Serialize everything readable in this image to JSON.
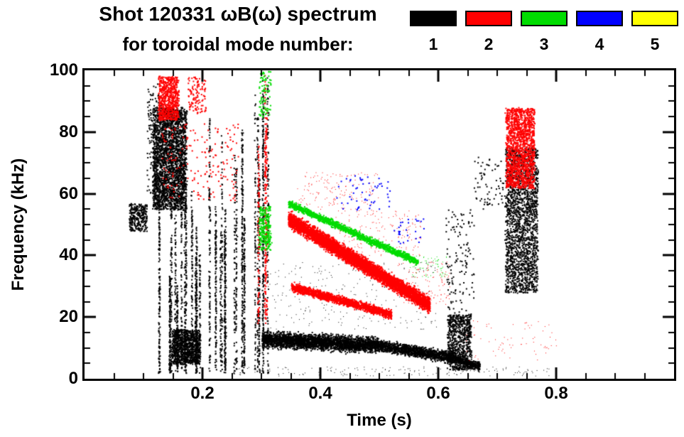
{
  "chart_data": {
    "type": "scatter",
    "title": "Shot 120331 ωB(ω) spectrum",
    "subtitle": "for toroidal mode number:",
    "xlabel": "Time (s)",
    "ylabel": "Frequency (kHz)",
    "xlim": [
      0.0,
      1.0
    ],
    "ylim": [
      0,
      100
    ],
    "grid": false,
    "xticks": [
      {
        "value": 0.2,
        "label": "0.2"
      },
      {
        "value": 0.4,
        "label": "0.4"
      },
      {
        "value": 0.6,
        "label": "0.6"
      },
      {
        "value": 0.8,
        "label": "0.8"
      }
    ],
    "xticks_minor_step": 0.05,
    "yticks": [
      {
        "value": 0,
        "label": "0"
      },
      {
        "value": 20,
        "label": "20"
      },
      {
        "value": 40,
        "label": "40"
      },
      {
        "value": 60,
        "label": "60"
      },
      {
        "value": 80,
        "label": "80"
      },
      {
        "value": 100,
        "label": "100"
      }
    ],
    "yticks_minor_step": 5,
    "legend": {
      "position": "top-right",
      "items": [
        {
          "mode": 1,
          "label": "1",
          "color": "#000000"
        },
        {
          "mode": 2,
          "label": "2",
          "color": "#ff0000"
        },
        {
          "mode": 3,
          "label": "3",
          "color": "#00dc00"
        },
        {
          "mode": 4,
          "label": "4",
          "color": "#0000ff"
        },
        {
          "mode": 5,
          "label": "5",
          "color": "#ffff00"
        }
      ]
    },
    "features": [
      {
        "mode": 1,
        "type": "scatter",
        "t0": 0.075,
        "t1": 0.105,
        "f0": 48,
        "f1": 57,
        "points": 300,
        "size": 2
      },
      {
        "mode": 1,
        "type": "scatter",
        "t0": 0.105,
        "t1": 0.13,
        "f0": 60,
        "f1": 96,
        "points": 150,
        "size": 2
      },
      {
        "mode": 1,
        "type": "blob",
        "t0": 0.115,
        "t1": 0.172,
        "f0": 55,
        "f1": 88,
        "points": 2600,
        "size": 2
      },
      {
        "mode": 1,
        "type": "striations",
        "t0": 0.125,
        "t1": 0.315,
        "fBase": 2,
        "topMin": 30,
        "topMax": 92,
        "lines": 26,
        "pointsPerLine": 150,
        "size": 2
      },
      {
        "mode": 1,
        "type": "striations",
        "t0": 0.285,
        "t1": 0.315,
        "fBase": 2,
        "topMin": 90,
        "topMax": 100,
        "lines": 3,
        "pointsPerLine": 170,
        "size": 2
      },
      {
        "mode": 1,
        "type": "blob",
        "t0": 0.148,
        "t1": 0.195,
        "f0": 5,
        "f1": 16,
        "points": 1000,
        "size": 2
      },
      {
        "mode": 1,
        "type": "band",
        "t0": 0.3,
        "t1": 0.5,
        "fStart": 13,
        "fEnd": 11,
        "thickness": 3.5,
        "points": 3000,
        "size": 2
      },
      {
        "mode": 1,
        "type": "band",
        "t0": 0.5,
        "t1": 0.625,
        "fStart": 11,
        "fEnd": 7,
        "thickness": 2.5,
        "points": 1300,
        "size": 2
      },
      {
        "mode": 1,
        "type": "band",
        "t0": 0.625,
        "t1": 0.67,
        "fStart": 7,
        "fEnd": 4,
        "thickness": 2,
        "points": 350,
        "size": 2
      },
      {
        "mode": 1,
        "type": "blob",
        "t0": 0.615,
        "t1": 0.655,
        "f0": 3,
        "f1": 21,
        "points": 800,
        "size": 2
      },
      {
        "mode": 1,
        "type": "scatter",
        "t0": 0.612,
        "t1": 0.66,
        "f0": 21,
        "f1": 55,
        "points": 130,
        "size": 2
      },
      {
        "mode": 1,
        "type": "blob",
        "t0": 0.713,
        "t1": 0.768,
        "f0": 28,
        "f1": 75,
        "points": 2000,
        "size": 2
      },
      {
        "mode": 1,
        "type": "scatter",
        "t0": 0.66,
        "t1": 0.71,
        "f0": 55,
        "f1": 72,
        "points": 70,
        "size": 2
      },
      {
        "mode": 1,
        "type": "scatter",
        "t0": 0.31,
        "t1": 0.6,
        "f0": 16,
        "f1": 38,
        "points": 250,
        "size": 1
      },
      {
        "mode": 1,
        "type": "scatter",
        "t0": 0.25,
        "t1": 0.79,
        "f0": 1,
        "f1": 4,
        "points": 160,
        "size": 1
      },
      {
        "mode": 2,
        "type": "blob",
        "t0": 0.125,
        "t1": 0.158,
        "f0": 84,
        "f1": 98,
        "points": 700,
        "size": 2
      },
      {
        "mode": 2,
        "type": "scatter",
        "t0": 0.13,
        "t1": 0.26,
        "f0": 58,
        "f1": 83,
        "points": 180,
        "size": 2
      },
      {
        "mode": 2,
        "type": "scatter",
        "t0": 0.175,
        "t1": 0.205,
        "f0": 86,
        "f1": 98,
        "points": 120,
        "size": 2
      },
      {
        "mode": 2,
        "type": "striations",
        "t0": 0.292,
        "t1": 0.315,
        "fBase": 18,
        "topMin": 75,
        "topMax": 100,
        "lines": 4,
        "pointsPerLine": 110,
        "size": 2
      },
      {
        "mode": 2,
        "type": "band",
        "t0": 0.345,
        "t1": 0.585,
        "fStart": 52,
        "fEnd": 24,
        "thickness": 3.5,
        "points": 6000,
        "size": 2
      },
      {
        "mode": 2,
        "type": "band",
        "t0": 0.35,
        "t1": 0.52,
        "fStart": 30,
        "fEnd": 21,
        "thickness": 2,
        "points": 1600,
        "size": 2
      },
      {
        "mode": 2,
        "type": "scatter",
        "t0": 0.36,
        "t1": 0.5,
        "f0": 55,
        "f1": 67,
        "points": 150,
        "size": 1
      },
      {
        "mode": 2,
        "type": "scatter",
        "t0": 0.42,
        "t1": 0.57,
        "f0": 40,
        "f1": 55,
        "points": 180,
        "size": 1
      },
      {
        "mode": 2,
        "type": "blob",
        "t0": 0.714,
        "t1": 0.762,
        "f0": 62,
        "f1": 88,
        "points": 1600,
        "size": 2
      },
      {
        "mode": 2,
        "type": "scatter",
        "t0": 0.53,
        "t1": 0.62,
        "f0": 24,
        "f1": 38,
        "points": 130,
        "size": 1
      },
      {
        "mode": 2,
        "type": "scatter",
        "t0": 0.64,
        "t1": 0.8,
        "f0": 6,
        "f1": 20,
        "points": 70,
        "size": 1
      },
      {
        "mode": 3,
        "type": "band",
        "t0": 0.345,
        "t1": 0.565,
        "fStart": 57,
        "fEnd": 38,
        "thickness": 1.6,
        "points": 1600,
        "size": 2
      },
      {
        "mode": 3,
        "type": "blob",
        "t0": 0.295,
        "t1": 0.315,
        "f0": 42,
        "f1": 56,
        "points": 250,
        "size": 2
      },
      {
        "mode": 3,
        "type": "scatter",
        "t0": 0.295,
        "t1": 0.315,
        "f0": 85,
        "f1": 100,
        "points": 90,
        "size": 2
      },
      {
        "mode": 3,
        "type": "scatter",
        "t0": 0.55,
        "t1": 0.615,
        "f0": 33,
        "f1": 40,
        "points": 70,
        "size": 1
      },
      {
        "mode": 4,
        "type": "scatter",
        "t0": 0.42,
        "t1": 0.52,
        "f0": 55,
        "f1": 66,
        "points": 55,
        "size": 2
      },
      {
        "mode": 4,
        "type": "scatter",
        "t0": 0.52,
        "t1": 0.575,
        "f0": 44,
        "f1": 52,
        "points": 28,
        "size": 2
      }
    ]
  }
}
